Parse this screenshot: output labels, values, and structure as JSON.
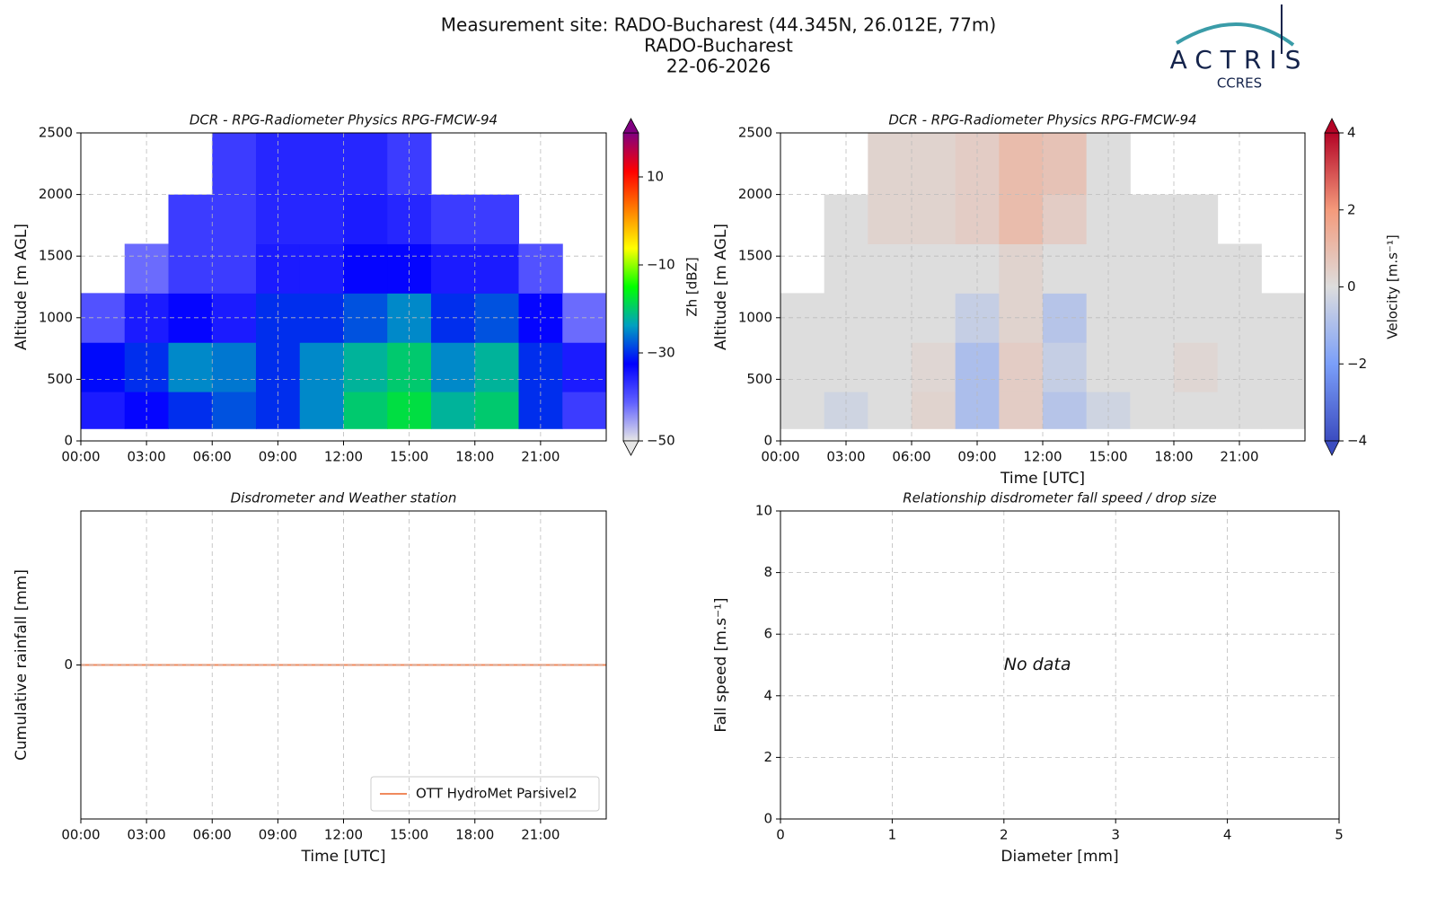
{
  "figure": {
    "title": [
      "Measurement site: RADO-Bucharest (44.345N, 26.012E, 77m)",
      "RADO-Bucharest",
      "22-06-2026"
    ],
    "logo": "ACTRIS",
    "logo_sub": "CCRES"
  },
  "chart_data": [
    {
      "type": "heatmap",
      "title": "DCR - RPG-Radiometer Physics RPG-FMCW-94",
      "ylabel": "Altitude [m AGL]",
      "xlim": [
        0,
        24
      ],
      "xticks": [
        {
          "value": 0,
          "label": "00:00"
        },
        {
          "value": 3,
          "label": "03:00"
        },
        {
          "value": 6,
          "label": "06:00"
        },
        {
          "value": 9,
          "label": "09:00"
        },
        {
          "value": 12,
          "label": "12:00"
        },
        {
          "value": 15,
          "label": "15:00"
        },
        {
          "value": 18,
          "label": "18:00"
        },
        {
          "value": 21,
          "label": "21:00"
        }
      ],
      "ylim": [
        0,
        2500
      ],
      "yticks": [
        0,
        500,
        1000,
        1500,
        2000,
        2500
      ],
      "grid": true,
      "x_edges": [
        0,
        2,
        4,
        6,
        8,
        10,
        12,
        14,
        16,
        18,
        20,
        22,
        24
      ],
      "y_edges": [
        100,
        400,
        800,
        1200,
        1600,
        2000,
        2500
      ],
      "z": [
        [
          -35,
          -33,
          -30,
          -28,
          -30,
          -25,
          -20,
          -18,
          -22,
          -20,
          -30,
          -38
        ],
        [
          -32,
          -30,
          -25,
          -26,
          -30,
          -25,
          -22,
          -20,
          -25,
          -22,
          -30,
          -35
        ],
        [
          -40,
          -35,
          -33,
          -35,
          -30,
          -30,
          -28,
          -25,
          -30,
          -28,
          -33,
          -42
        ],
        [
          null,
          -42,
          -38,
          -38,
          -35,
          -35,
          -33,
          -33,
          -35,
          -35,
          -40,
          null
        ],
        [
          null,
          null,
          -38,
          -38,
          -36,
          -36,
          -35,
          -36,
          -38,
          -38,
          null,
          null
        ],
        [
          null,
          null,
          null,
          -38,
          -36,
          -36,
          -36,
          -38,
          null,
          null,
          null,
          null
        ]
      ],
      "colorscale": [
        "#e6e6e6",
        "#6060ff",
        "#0000ff",
        "#00a0c0",
        "#00ff00",
        "#ffff00",
        "#ff8000",
        "#ff0000",
        "#800080"
      ],
      "clim": [
        -50,
        20
      ],
      "cticks": [
        {
          "value": -50,
          "label": "−50"
        },
        {
          "value": -30,
          "label": "−30"
        },
        {
          "value": -10,
          "label": "−10"
        },
        10
      ],
      "clabel": "Zh [dBZ]"
    },
    {
      "type": "heatmap",
      "title": "DCR - RPG-Radiometer Physics RPG-FMCW-94",
      "xlabel": "Time [UTC]",
      "ylabel": "Altitude [m AGL]",
      "xlim": [
        0,
        24
      ],
      "xticks": [
        {
          "value": 0,
          "label": "00:00"
        },
        {
          "value": 3,
          "label": "03:00"
        },
        {
          "value": 6,
          "label": "06:00"
        },
        {
          "value": 9,
          "label": "09:00"
        },
        {
          "value": 12,
          "label": "12:00"
        },
        {
          "value": 15,
          "label": "15:00"
        },
        {
          "value": 18,
          "label": "18:00"
        },
        {
          "value": 21,
          "label": "21:00"
        }
      ],
      "ylim": [
        0,
        2500
      ],
      "yticks": [
        0,
        500,
        1000,
        1500,
        2000,
        2500
      ],
      "grid": true,
      "x_edges": [
        0,
        2,
        4,
        6,
        8,
        10,
        12,
        14,
        16,
        18,
        20,
        22,
        24
      ],
      "y_edges": [
        100,
        400,
        800,
        1200,
        1600,
        2000,
        2500
      ],
      "z": [
        [
          0,
          -0.3,
          0,
          0.3,
          -1,
          0.5,
          -0.8,
          -0.3,
          0,
          0,
          0,
          0
        ],
        [
          0,
          0,
          0,
          0.2,
          -1,
          0.5,
          -0.5,
          0,
          0,
          0.2,
          0,
          0
        ],
        [
          0,
          0,
          0,
          0,
          -0.5,
          0.3,
          -0.8,
          0,
          0,
          0,
          0,
          0
        ],
        [
          null,
          0,
          0,
          0,
          0,
          0.3,
          0,
          0,
          0,
          0,
          0,
          null
        ],
        [
          null,
          0,
          0.3,
          0.3,
          0.5,
          1,
          0.5,
          0,
          0,
          0,
          null,
          null
        ],
        [
          null,
          null,
          0.3,
          0.3,
          0.5,
          1,
          0.8,
          0,
          null,
          null,
          null,
          null
        ]
      ],
      "colorscale": [
        "#3b4cc0",
        "#7b9ff9",
        "#dddddd",
        "#f49a7b",
        "#b40426"
      ],
      "clim": [
        -4,
        4
      ],
      "cticks": [
        {
          "value": -4,
          "label": "−4"
        },
        {
          "value": -2,
          "label": "−2"
        },
        0,
        2,
        4
      ],
      "clabel": "Velocity [m.s⁻¹]"
    },
    {
      "type": "line",
      "title": "Disdrometer and Weather station",
      "xlabel": "Time [UTC]",
      "ylabel": "Cumulative rainfall [mm]",
      "xlim": [
        0,
        24
      ],
      "xticks": [
        {
          "value": 0,
          "label": "00:00"
        },
        {
          "value": 3,
          "label": "03:00"
        },
        {
          "value": 6,
          "label": "06:00"
        },
        {
          "value": 9,
          "label": "09:00"
        },
        {
          "value": 12,
          "label": "12:00"
        },
        {
          "value": 15,
          "label": "15:00"
        },
        {
          "value": 18,
          "label": "18:00"
        },
        {
          "value": 21,
          "label": "21:00"
        }
      ],
      "ylim": [
        -0.06,
        0.06
      ],
      "yticks": [
        0
      ],
      "grid": true,
      "legend": "lower right",
      "series": [
        {
          "name": "OTT HydroMet Parsivel2",
          "color": "#f08a5d",
          "x": [
            0,
            24
          ],
          "values": [
            0,
            0
          ]
        }
      ]
    },
    {
      "type": "scatter",
      "title": "Relationship disdrometer fall speed / drop size",
      "xlabel": "Diameter [mm]",
      "ylabel": "Fall speed [m.s⁻¹]",
      "xlim": [
        0,
        5
      ],
      "xticks": [
        0,
        1,
        2,
        3,
        4,
        5
      ],
      "ylim": [
        0,
        10
      ],
      "yticks": [
        0,
        2,
        4,
        6,
        8,
        10
      ],
      "grid": true,
      "x": [],
      "values": [],
      "annotation": "No data"
    }
  ]
}
